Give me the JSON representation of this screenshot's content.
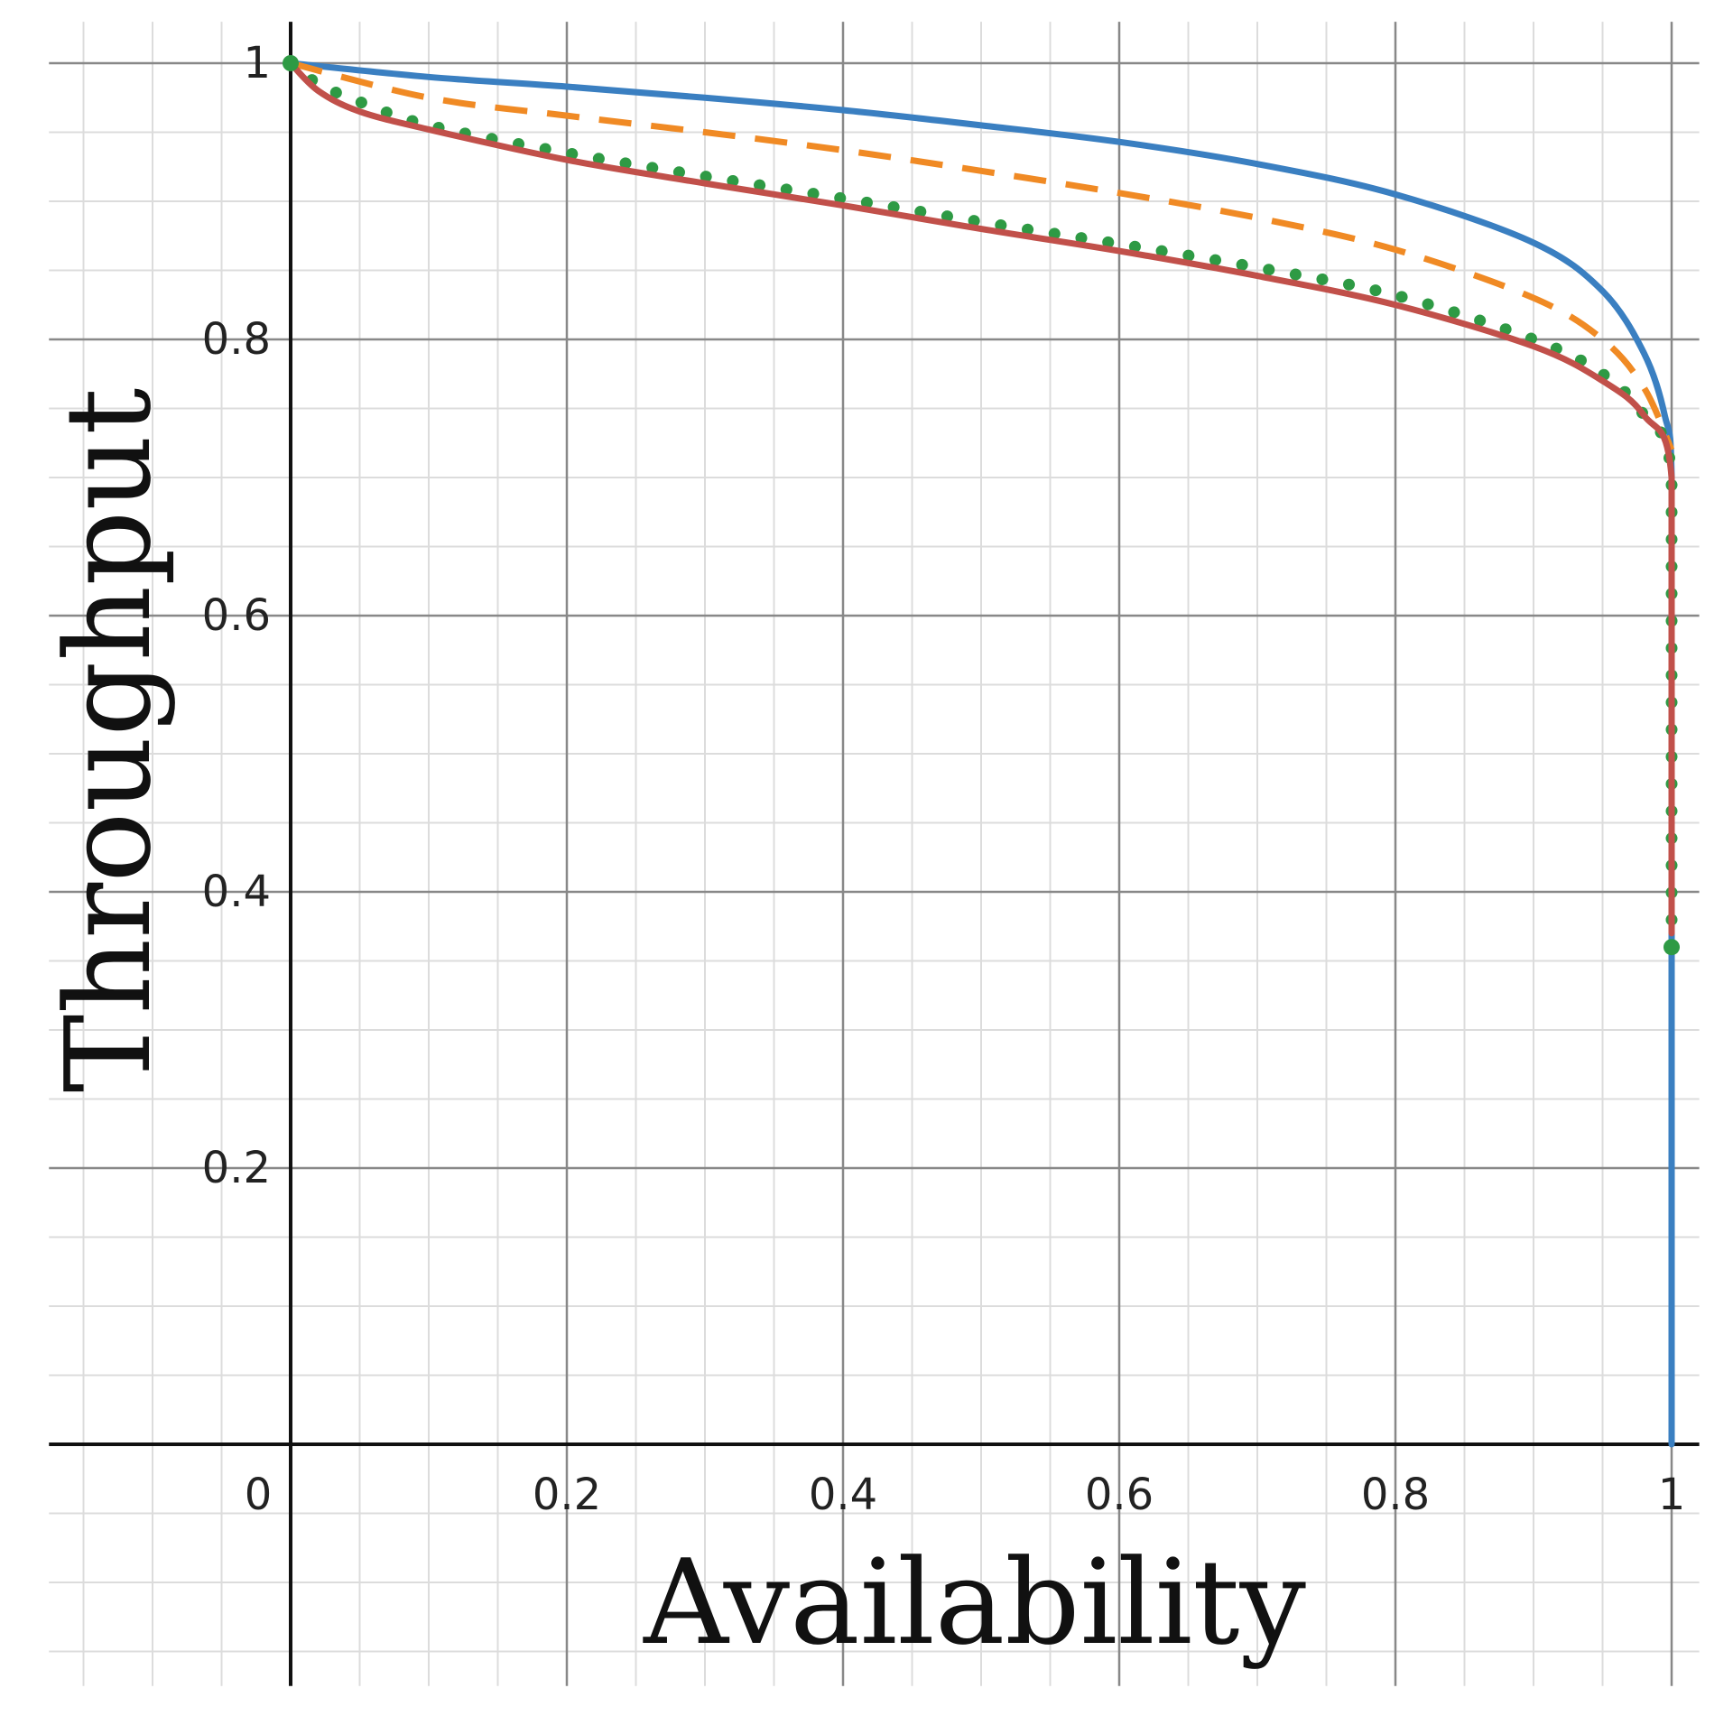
{
  "chart_data": {
    "type": "line",
    "title": "",
    "xlabel": "Availability",
    "ylabel": "Throughput",
    "xlim": [
      -0.175,
      1.02
    ],
    "ylim": [
      -0.175,
      1.03
    ],
    "grid": true,
    "legend": "none",
    "x_ticks": [
      "0",
      "0.2",
      "0.4",
      "0.6",
      "0.8",
      "1"
    ],
    "y_ticks": [
      "0.2",
      "0.4",
      "0.6",
      "0.8",
      "1"
    ],
    "series": [
      {
        "color": "#3a7fc1",
        "style": "solid",
        "points": [
          [
            0,
            1
          ],
          [
            0.1,
            0.99
          ],
          [
            0.2,
            0.983
          ],
          [
            0.3,
            0.975
          ],
          [
            0.4,
            0.966
          ],
          [
            0.5,
            0.955
          ],
          [
            0.6,
            0.943
          ],
          [
            0.7,
            0.927
          ],
          [
            0.8,
            0.905
          ],
          [
            0.9,
            0.87
          ],
          [
            0.95,
            0.835
          ],
          [
            0.98,
            0.79
          ],
          [
            0.995,
            0.745
          ],
          [
            1,
            0.7
          ],
          [
            1,
            0.5
          ],
          [
            1,
            0.2
          ],
          [
            1,
            0
          ]
        ]
      },
      {
        "color": "#f08a24",
        "style": "dashed",
        "points": [
          [
            0,
            1
          ],
          [
            0.1,
            0.975
          ],
          [
            0.2,
            0.962
          ],
          [
            0.3,
            0.95
          ],
          [
            0.4,
            0.937
          ],
          [
            0.5,
            0.922
          ],
          [
            0.6,
            0.906
          ],
          [
            0.7,
            0.888
          ],
          [
            0.8,
            0.865
          ],
          [
            0.9,
            0.83
          ],
          [
            0.95,
            0.8
          ],
          [
            0.98,
            0.765
          ],
          [
            1,
            0.72
          ]
        ]
      },
      {
        "color": "#2e9a44",
        "style": "dotted",
        "points": [
          [
            0,
            1
          ],
          [
            0.02,
            0.985
          ],
          [
            0.05,
            0.972
          ],
          [
            0.1,
            0.955
          ],
          [
            0.2,
            0.935
          ],
          [
            0.3,
            0.918
          ],
          [
            0.4,
            0.902
          ],
          [
            0.5,
            0.885
          ],
          [
            0.6,
            0.869
          ],
          [
            0.7,
            0.852
          ],
          [
            0.8,
            0.832
          ],
          [
            0.9,
            0.8
          ],
          [
            0.95,
            0.775
          ],
          [
            0.98,
            0.745
          ],
          [
            1,
            0.7
          ],
          [
            1,
            0.5
          ],
          [
            1,
            0.36
          ]
        ]
      },
      {
        "color": "#c1504a",
        "style": "solid",
        "points": [
          [
            0,
            1
          ],
          [
            0.02,
            0.98
          ],
          [
            0.05,
            0.965
          ],
          [
            0.1,
            0.952
          ],
          [
            0.2,
            0.93
          ],
          [
            0.3,
            0.913
          ],
          [
            0.4,
            0.897
          ],
          [
            0.5,
            0.88
          ],
          [
            0.6,
            0.864
          ],
          [
            0.7,
            0.846
          ],
          [
            0.8,
            0.825
          ],
          [
            0.9,
            0.795
          ],
          [
            0.95,
            0.77
          ],
          [
            0.98,
            0.745
          ],
          [
            1,
            0.7
          ],
          [
            1,
            0.5
          ],
          [
            1,
            0.37
          ]
        ]
      }
    ]
  }
}
